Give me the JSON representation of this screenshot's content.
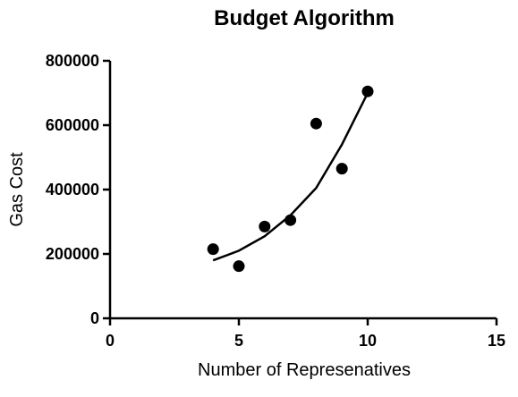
{
  "chart_data": {
    "type": "scatter",
    "title": "Budget Algorithm",
    "xlabel": "Number of Represenatives",
    "ylabel": "Gas Cost",
    "xlim": [
      0,
      15
    ],
    "ylim": [
      0,
      800000
    ],
    "xticks": [
      0,
      5,
      10,
      15
    ],
    "yticks": [
      0,
      200000,
      400000,
      600000,
      800000
    ],
    "xtick_labels": [
      "0",
      "5",
      "10",
      "15"
    ],
    "ytick_labels": [
      "0",
      "200000",
      "400000",
      "600000",
      "800000"
    ],
    "grid": false,
    "legend": "none",
    "points": [
      {
        "x": 4,
        "y": 215000
      },
      {
        "x": 5,
        "y": 162000
      },
      {
        "x": 6,
        "y": 285000
      },
      {
        "x": 7,
        "y": 305000
      },
      {
        "x": 8,
        "y": 605000
      },
      {
        "x": 9,
        "y": 465000
      },
      {
        "x": 10,
        "y": 705000
      }
    ],
    "fit_curve": {
      "type": "quadratic",
      "points": [
        {
          "x": 4,
          "y": 180000
        },
        {
          "x": 5,
          "y": 210000
        },
        {
          "x": 6,
          "y": 255000
        },
        {
          "x": 7,
          "y": 320000
        },
        {
          "x": 8,
          "y": 405000
        },
        {
          "x": 9,
          "y": 540000
        },
        {
          "x": 10,
          "y": 700000
        }
      ]
    },
    "colors": {
      "points": "#000000",
      "curve": "#000000",
      "axes": "#000000"
    }
  }
}
